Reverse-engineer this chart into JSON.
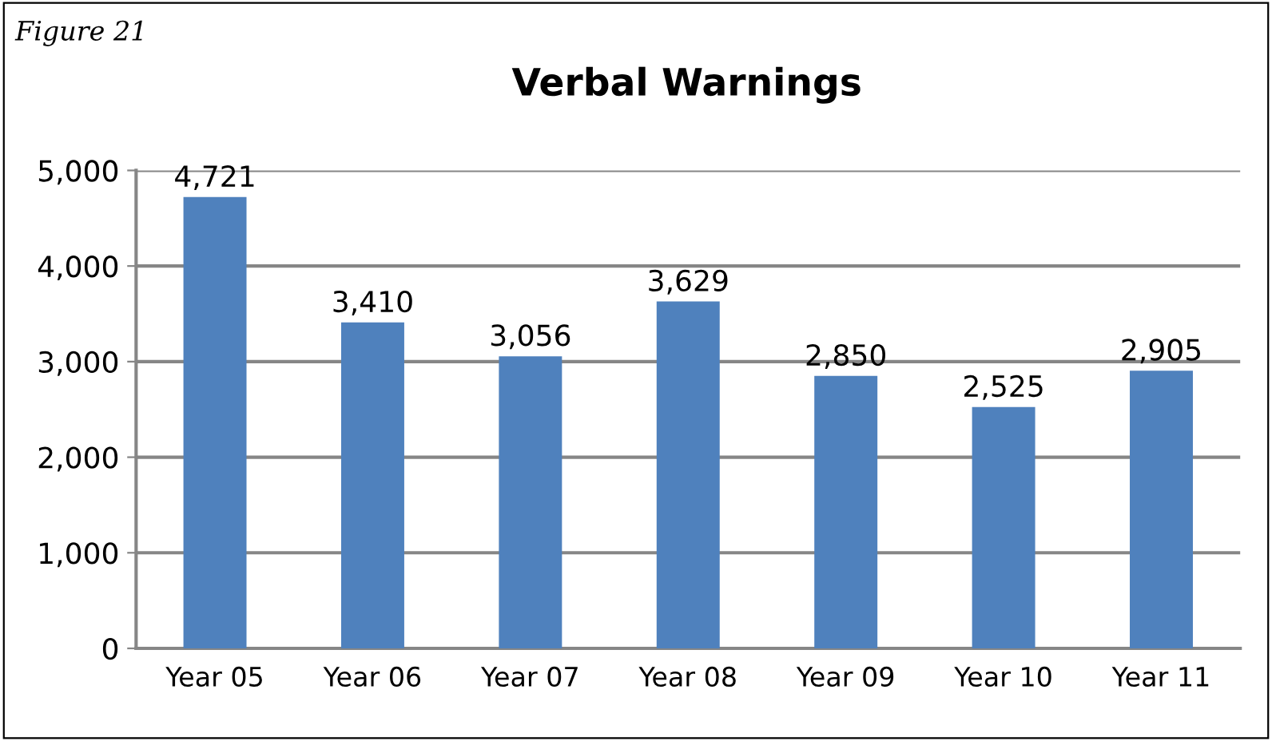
{
  "chart_data": {
    "type": "bar",
    "title": "Verbal Warnings",
    "annotations": [
      "Figure 21"
    ],
    "categories": [
      "Year 05",
      "Year 06",
      "Year 07",
      "Year 08",
      "Year 09",
      "Year 10",
      "Year 11"
    ],
    "values": [
      4721,
      3410,
      3056,
      3629,
      2850,
      2525,
      2905
    ],
    "value_labels": [
      "4,721",
      "3,410",
      "3,056",
      "3,629",
      "2,850",
      "2,525",
      "2,905"
    ],
    "color": "#4f81bd",
    "ylim": [
      0,
      5000
    ],
    "yticks": [
      {
        "value": 0,
        "label": "0"
      },
      {
        "value": 1000,
        "label": "1,000"
      },
      {
        "value": 2000,
        "label": "2,000"
      },
      {
        "value": 3000,
        "label": "3,000"
      },
      {
        "value": 4000,
        "label": "4,000"
      },
      {
        "value": 5000,
        "label": "5,000"
      }
    ],
    "grid": "y",
    "legend": false
  }
}
